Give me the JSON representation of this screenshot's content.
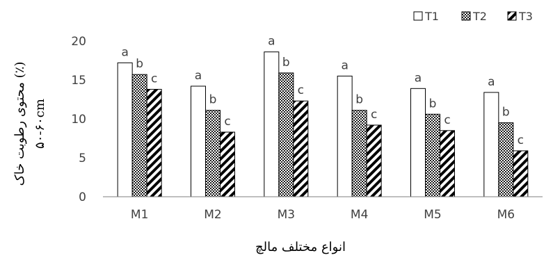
{
  "chart_data": {
    "type": "bar",
    "xlabel": "انواع مختلف مالچ",
    "ylabel_line1": "محتوی رطوبت خاک (٪)",
    "ylabel_line2": "۵۰-۶۰cm",
    "ylim": [
      0,
      20
    ],
    "yticks": [
      0,
      5,
      10,
      15,
      20
    ],
    "grid": false,
    "legend_position": "top-right",
    "categories": [
      "M1",
      "M2",
      "M3",
      "M4",
      "M5",
      "M6"
    ],
    "series": [
      {
        "name": "T1",
        "pattern": "white",
        "values": [
          17.2,
          14.2,
          18.6,
          15.5,
          13.9,
          13.4
        ],
        "letters": [
          "a",
          "a",
          "a",
          "a",
          "a",
          "a"
        ]
      },
      {
        "name": "T2",
        "pattern": "checker",
        "values": [
          15.7,
          11.1,
          15.9,
          11.1,
          10.6,
          9.5
        ],
        "letters": [
          "b",
          "b",
          "b",
          "b",
          "b",
          "b"
        ]
      },
      {
        "name": "T3",
        "pattern": "diagonal",
        "values": [
          13.8,
          8.3,
          12.3,
          9.2,
          8.5,
          5.9
        ],
        "letters": [
          "c",
          "c",
          "c",
          "c",
          "c",
          "c"
        ]
      }
    ],
    "colors": {
      "axis": "#7f7f7f",
      "bar_stroke": "#000000",
      "text": "#404040"
    }
  }
}
